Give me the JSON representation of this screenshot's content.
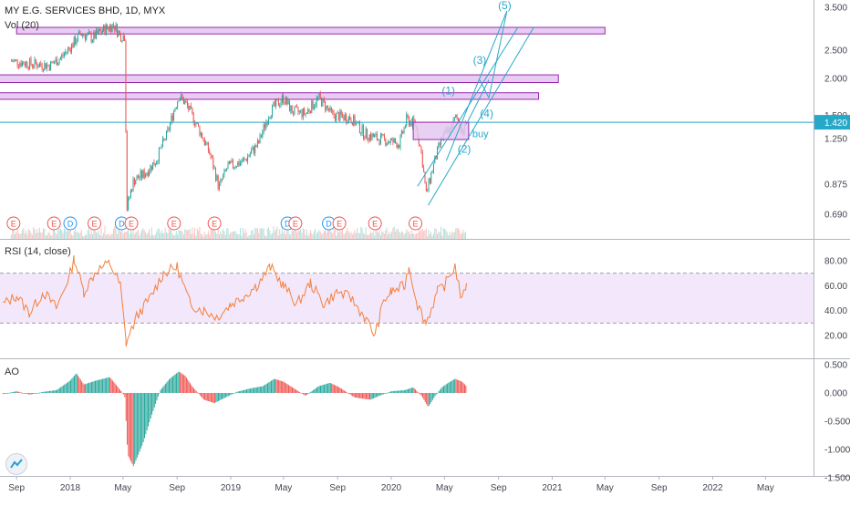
{
  "legend": {
    "symbol_title": "MY E.G. SERVICES BHD, 1D, MYX",
    "volume_label": "Vol (20)",
    "rsi_label": "RSI (14, close)",
    "ao_label": "AO"
  },
  "colors": {
    "price_up": "#26a69a",
    "price_down": "#ef5350",
    "rsi_line": "#f57f3c",
    "rsi_band": "#f3e8fb",
    "zone_fill": "#e4c8f0",
    "zone_stroke": "#9c27b0",
    "trendline": "#26a9c9",
    "last_price_line": "#26a9c9",
    "ao_up": "#26a69a",
    "ao_down": "#ef5350",
    "earnings_marker": "#ef5350",
    "dividend_marker": "#2196f3"
  },
  "annotations": {
    "wave_labels": [
      "(1)",
      "(2)",
      "(3)",
      "(4)",
      "(5)"
    ],
    "buy_label": "buy"
  },
  "chart_data": [
    {
      "type": "candlestick",
      "title": "MY E.G. SERVICES BHD, 1D, MYX",
      "scale": "log",
      "x_tick_labels": [
        "Sep",
        "2018",
        "May",
        "Sep",
        "2019",
        "May",
        "Sep",
        "2020",
        "May",
        "Sep",
        "2021",
        "May",
        "Sep",
        "2022",
        "May"
      ],
      "y_tick_labels": [
        "3.500",
        "2.500",
        "2.000",
        "1.500",
        "1.250",
        "0.875",
        "0.690"
      ],
      "y_ticks": [
        3.5,
        2.5,
        2.0,
        1.5,
        1.25,
        0.875,
        0.69
      ],
      "last_price": 1.42,
      "last_price_label": "1.420",
      "close_path": [
        [
          "2017-08-20",
          2.3
        ],
        [
          "2017-10-01",
          2.25
        ],
        [
          "2017-11-15",
          2.22
        ],
        [
          "2017-12-10",
          2.35
        ],
        [
          "2018-01-05",
          2.6
        ],
        [
          "2018-01-25",
          2.85
        ],
        [
          "2018-02-20",
          2.75
        ],
        [
          "2018-03-20",
          2.95
        ],
        [
          "2018-04-10",
          3.05
        ],
        [
          "2018-04-25",
          2.8
        ],
        [
          "2018-05-06",
          2.8
        ],
        [
          "2018-05-08",
          0.7
        ],
        [
          "2018-05-25",
          0.9
        ],
        [
          "2018-06-20",
          0.95
        ],
        [
          "2018-07-15",
          1.05
        ],
        [
          "2018-08-10",
          1.3
        ],
        [
          "2018-09-05",
          1.75
        ],
        [
          "2018-09-20",
          1.65
        ],
        [
          "2018-10-20",
          1.35
        ],
        [
          "2018-11-15",
          1.1
        ],
        [
          "2018-12-05",
          0.85
        ],
        [
          "2018-12-25",
          1.0
        ],
        [
          "2019-02-01",
          1.05
        ],
        [
          "2019-03-05",
          1.2
        ],
        [
          "2019-04-01",
          1.55
        ],
        [
          "2019-05-01",
          1.72
        ],
        [
          "2019-05-20",
          1.55
        ],
        [
          "2019-06-20",
          1.52
        ],
        [
          "2019-07-20",
          1.72
        ],
        [
          "2019-08-20",
          1.5
        ],
        [
          "2019-10-01",
          1.47
        ],
        [
          "2019-11-01",
          1.3
        ],
        [
          "2019-12-01",
          1.25
        ],
        [
          "2020-01-01",
          1.22
        ],
        [
          "2020-01-20",
          1.2
        ],
        [
          "2020-02-05",
          1.45
        ],
        [
          "2020-02-25",
          1.4
        ],
        [
          "2020-03-10",
          1.1
        ],
        [
          "2020-03-20",
          0.8
        ],
        [
          "2020-04-05",
          1.0
        ],
        [
          "2020-04-25",
          1.25
        ],
        [
          "2020-05-15",
          1.35
        ],
        [
          "2020-05-28",
          1.48
        ],
        [
          "2020-06-12",
          1.32
        ],
        [
          "2020-06-20",
          1.42
        ]
      ],
      "resistance_zones": [
        {
          "from": "2017-09-01",
          "to": "2021-05-01",
          "low": 2.84,
          "high": 2.99
        },
        {
          "from": "2017-07-01",
          "to": "2021-01-15",
          "low": 1.94,
          "high": 2.06
        },
        {
          "from": "2017-07-01",
          "to": "2020-12-01",
          "low": 1.7,
          "high": 1.79
        }
      ],
      "buy_zone": {
        "from": "2020-02-20",
        "to": "2020-06-25",
        "low": 1.24,
        "high": 1.42,
        "label": "buy"
      },
      "wave_labels": [
        {
          "label": "(1)",
          "date": "2020-05-10",
          "price": 1.77
        },
        {
          "label": "(2)",
          "date": "2020-06-15",
          "price": 1.12
        },
        {
          "label": "(3)",
          "date": "2020-07-20",
          "price": 2.25
        },
        {
          "label": "(4)",
          "date": "2020-08-05",
          "price": 1.48
        },
        {
          "label": "(5)",
          "date": "2020-09-15",
          "price": 3.45
        }
      ],
      "trendlines": [
        {
          "from": [
            "2020-03-25",
            0.74
          ],
          "to": [
            "2020-11-20",
            2.99
          ]
        },
        {
          "from": [
            "2020-03-01",
            0.86
          ],
          "to": [
            "2020-10-15",
            2.99
          ]
        },
        {
          "from": [
            "2020-05-05",
            1.05
          ],
          "to": [
            "2020-09-20",
            3.4
          ]
        },
        {
          "from": [
            "2020-06-20",
            1.4
          ],
          "to": [
            "2020-08-10",
            1.98
          ]
        },
        {
          "from": [
            "2020-07-20",
            1.98
          ],
          "to": [
            "2020-08-10",
            1.72
          ]
        },
        {
          "from": [
            "2020-08-10",
            1.72
          ],
          "to": [
            "2020-09-20",
            3.4
          ]
        }
      ],
      "events": [
        {
          "type": "E",
          "date": "2017-08-25"
        },
        {
          "type": "E",
          "date": "2017-11-25"
        },
        {
          "type": "D",
          "date": "2018-01-01"
        },
        {
          "type": "E",
          "date": "2018-02-25"
        },
        {
          "type": "D",
          "date": "2018-04-28"
        },
        {
          "type": "E",
          "date": "2018-05-20"
        },
        {
          "type": "E",
          "date": "2018-08-25"
        },
        {
          "type": "E",
          "date": "2018-11-25"
        },
        {
          "type": "D",
          "date": "2019-05-10"
        },
        {
          "type": "E",
          "date": "2019-05-28"
        },
        {
          "type": "D",
          "date": "2019-08-12"
        },
        {
          "type": "E",
          "date": "2019-09-05"
        },
        {
          "type": "E",
          "date": "2019-11-25"
        },
        {
          "type": "E",
          "date": "2020-02-25"
        }
      ]
    },
    {
      "type": "line",
      "title": "RSI (14, close)",
      "y_tick_labels": [
        "80.00",
        "60.00",
        "40.00",
        "20.00"
      ],
      "y_ticks": [
        80,
        60,
        40,
        20
      ],
      "band": [
        30,
        70
      ],
      "values": [
        [
          "2017-08-01",
          45
        ],
        [
          "2017-09-01",
          52
        ],
        [
          "2017-10-01",
          38
        ],
        [
          "2017-11-01",
          55
        ],
        [
          "2017-12-01",
          42
        ],
        [
          "2018-01-01",
          70
        ],
        [
          "2018-01-10",
          82
        ],
        [
          "2018-02-01",
          55
        ],
        [
          "2018-03-01",
          72
        ],
        [
          "2018-04-01",
          78
        ],
        [
          "2018-04-25",
          60
        ],
        [
          "2018-05-08",
          14
        ],
        [
          "2018-06-01",
          35
        ],
        [
          "2018-07-01",
          50
        ],
        [
          "2018-08-01",
          70
        ],
        [
          "2018-09-01",
          75
        ],
        [
          "2018-10-01",
          45
        ],
        [
          "2018-11-01",
          40
        ],
        [
          "2018-12-01",
          35
        ],
        [
          "2019-01-01",
          45
        ],
        [
          "2019-02-01",
          52
        ],
        [
          "2019-03-01",
          60
        ],
        [
          "2019-04-01",
          75
        ],
        [
          "2019-05-01",
          60
        ],
        [
          "2019-06-01",
          45
        ],
        [
          "2019-07-01",
          62
        ],
        [
          "2019-08-01",
          45
        ],
        [
          "2019-09-01",
          55
        ],
        [
          "2019-10-01",
          50
        ],
        [
          "2019-11-01",
          35
        ],
        [
          "2019-11-25",
          20
        ],
        [
          "2019-12-15",
          48
        ],
        [
          "2020-01-01",
          55
        ],
        [
          "2020-02-01",
          60
        ],
        [
          "2020-02-10",
          75
        ],
        [
          "2020-03-01",
          45
        ],
        [
          "2020-03-20",
          30
        ],
        [
          "2020-04-15",
          55
        ],
        [
          "2020-05-01",
          60
        ],
        [
          "2020-05-25",
          76
        ],
        [
          "2020-06-10",
          47
        ],
        [
          "2020-06-20",
          62
        ]
      ]
    },
    {
      "type": "bar",
      "title": "AO",
      "y_tick_labels": [
        "0.500",
        "0.000",
        "-0.500",
        "-1.000",
        "-1.500"
      ],
      "y_ticks": [
        0.5,
        0,
        -0.5,
        -1.0,
        -1.5
      ],
      "values": [
        [
          "2017-08-01",
          -0.02
        ],
        [
          "2017-09-01",
          0.03
        ],
        [
          "2017-10-01",
          -0.03
        ],
        [
          "2017-11-01",
          0.02
        ],
        [
          "2017-12-01",
          0.05
        ],
        [
          "2018-01-01",
          0.22
        ],
        [
          "2018-01-15",
          0.35
        ],
        [
          "2018-02-01",
          0.15
        ],
        [
          "2018-03-01",
          0.22
        ],
        [
          "2018-04-01",
          0.28
        ],
        [
          "2018-04-20",
          0.1
        ],
        [
          "2018-05-05",
          -0.05
        ],
        [
          "2018-05-12",
          -1.1
        ],
        [
          "2018-05-25",
          -1.3
        ],
        [
          "2018-06-15",
          -0.9
        ],
        [
          "2018-07-05",
          -0.4
        ],
        [
          "2018-07-25",
          0.05
        ],
        [
          "2018-08-15",
          0.25
        ],
        [
          "2018-09-05",
          0.38
        ],
        [
          "2018-09-20",
          0.3
        ],
        [
          "2018-10-05",
          0.12
        ],
        [
          "2018-11-01",
          -0.12
        ],
        [
          "2018-11-25",
          -0.18
        ],
        [
          "2018-12-15",
          -0.1
        ],
        [
          "2019-01-15",
          0.02
        ],
        [
          "2019-02-15",
          0.08
        ],
        [
          "2019-03-15",
          0.12
        ],
        [
          "2019-04-10",
          0.25
        ],
        [
          "2019-05-01",
          0.2
        ],
        [
          "2019-05-25",
          0.08
        ],
        [
          "2019-06-20",
          -0.05
        ],
        [
          "2019-07-20",
          0.12
        ],
        [
          "2019-08-15",
          0.18
        ],
        [
          "2019-09-05",
          0.1
        ],
        [
          "2019-10-10",
          -0.08
        ],
        [
          "2019-11-15",
          -0.12
        ],
        [
          "2019-12-05",
          -0.05
        ],
        [
          "2020-01-01",
          0.03
        ],
        [
          "2020-02-01",
          0.05
        ],
        [
          "2020-02-20",
          0.1
        ],
        [
          "2020-03-10",
          -0.05
        ],
        [
          "2020-03-25",
          -0.25
        ],
        [
          "2020-04-10",
          -0.05
        ],
        [
          "2020-04-25",
          0.1
        ],
        [
          "2020-05-10",
          0.18
        ],
        [
          "2020-05-25",
          0.25
        ],
        [
          "2020-06-10",
          0.2
        ],
        [
          "2020-06-20",
          0.12
        ]
      ]
    }
  ]
}
